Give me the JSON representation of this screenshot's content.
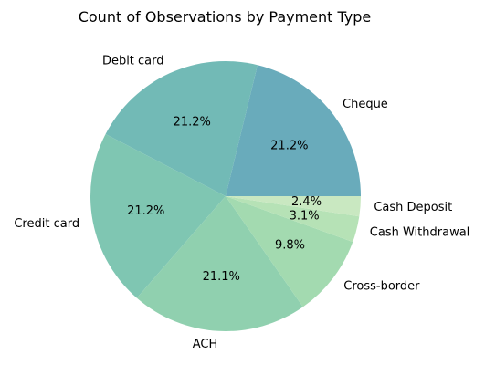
{
  "chart_data": {
    "type": "pie",
    "title": "Count of Observations by Payment Type",
    "categories": [
      "Cheque",
      "Debit card",
      "Credit card",
      "ACH",
      "Cross-border",
      "Cash Withdrawal",
      "Cash Deposit"
    ],
    "values": [
      21.2,
      21.2,
      21.2,
      21.1,
      9.8,
      3.1,
      2.4
    ],
    "value_labels": [
      "21.2%",
      "21.2%",
      "21.2%",
      "21.1%",
      "9.8%",
      "3.1%",
      "2.4%"
    ],
    "colors": [
      "#69abbb",
      "#72bab6",
      "#7fc6b2",
      "#90d0af",
      "#a3dab0",
      "#b6e2b6",
      "#c9e8c1"
    ],
    "start_angle_deg": 0,
    "direction": "counterclockwise",
    "legend": "none"
  }
}
